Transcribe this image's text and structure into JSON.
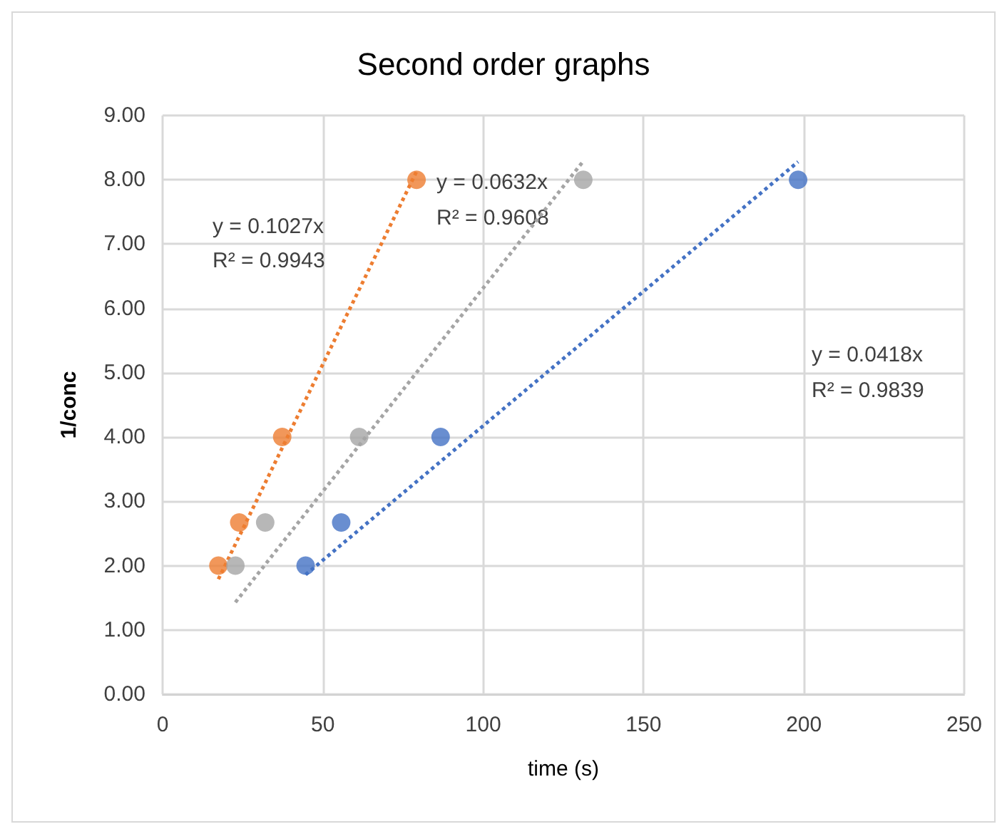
{
  "chart_data": {
    "type": "scatter",
    "title": "Second order graphs",
    "xlabel": "time (s)",
    "ylabel": "1/conc",
    "xlim": [
      0,
      250
    ],
    "xticks": [
      0,
      50,
      100,
      150,
      200,
      250
    ],
    "ylim": [
      0,
      9
    ],
    "yticks": [
      {
        "value": 0,
        "label": "0.00"
      },
      {
        "value": 1,
        "label": "1.00"
      },
      {
        "value": 2,
        "label": "2.00"
      },
      {
        "value": 3,
        "label": "3.00"
      },
      {
        "value": 4,
        "label": "4.00"
      },
      {
        "value": 5,
        "label": "5.00"
      },
      {
        "value": 6,
        "label": "6.00"
      },
      {
        "value": 7,
        "label": "7.00"
      },
      {
        "value": 8,
        "label": "8.00"
      },
      {
        "value": 9,
        "label": "9.00"
      }
    ],
    "grid": true,
    "marker": "circle",
    "series": [
      {
        "color": "#4472c4",
        "x": [
          44.6,
          55.7,
          86.7,
          198.2
        ],
        "values": [
          2,
          2.67,
          4,
          8
        ]
      },
      {
        "color": "#ed7d31",
        "x": [
          17.4,
          23.9,
          37.3,
          79.2
        ],
        "values": [
          2,
          2.67,
          4,
          8
        ]
      },
      {
        "color": "#a5a5a5",
        "x": [
          22.7,
          32.0,
          61.3,
          131.2
        ],
        "values": [
          2,
          2.67,
          4,
          8
        ]
      },
      {
        "type": "line",
        "line_style": "dotted",
        "marker": "none",
        "color": "#4472c4",
        "x": [
          44.6,
          198.2
        ],
        "values": [
          1.86,
          8.28
        ]
      },
      {
        "type": "line",
        "line_style": "dotted",
        "marker": "none",
        "color": "#ed7d31",
        "x": [
          17.4,
          79.2
        ],
        "values": [
          1.79,
          8.13
        ]
      },
      {
        "type": "line",
        "line_style": "dotted",
        "marker": "none",
        "color": "#a5a5a5",
        "x": [
          22.7,
          131.2
        ],
        "values": [
          1.43,
          8.29
        ]
      }
    ],
    "annotations": [
      "y = 0.1027x",
      "R² = 0.9943",
      "y = 0.0632x",
      "R² = 0.9608",
      "y = 0.0418x",
      "R² = 0.9839"
    ]
  }
}
